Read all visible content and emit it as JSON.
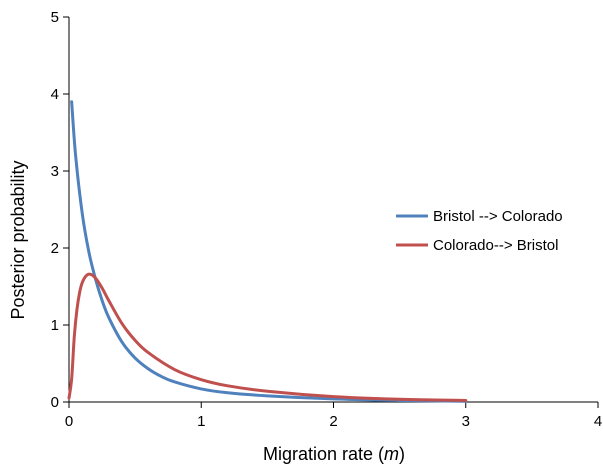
{
  "chart_data": {
    "type": "line",
    "title": "",
    "xlabel": "Migration rate (",
    "xlabel_var": "m",
    "xlabel_close": ")",
    "ylabel": "Posterior probability",
    "xlim": [
      0,
      4
    ],
    "ylim": [
      0,
      5
    ],
    "xticks": [
      "0",
      "1",
      "2",
      "3",
      "4"
    ],
    "yticks": [
      "0",
      "1",
      "2",
      "3",
      "4",
      "5"
    ],
    "grid": false,
    "legend_position": "right",
    "series": [
      {
        "name": "Bristol --> Colorado",
        "color": "#4f81bd",
        "x": [
          0.02,
          0.05,
          0.1,
          0.15,
          0.2,
          0.25,
          0.3,
          0.4,
          0.5,
          0.6,
          0.7,
          0.8,
          1.0,
          1.2,
          1.5,
          2.0,
          2.5,
          3.0
        ],
        "y": [
          3.9,
          3.2,
          2.45,
          1.95,
          1.6,
          1.32,
          1.1,
          0.78,
          0.57,
          0.43,
          0.33,
          0.26,
          0.17,
          0.12,
          0.08,
          0.04,
          0.02,
          0.01
        ]
      },
      {
        "name": "Colorado--> Bristol",
        "color": "#c0504d",
        "x": [
          0.0,
          0.02,
          0.04,
          0.06,
          0.08,
          0.1,
          0.13,
          0.16,
          0.2,
          0.25,
          0.3,
          0.4,
          0.5,
          0.6,
          0.8,
          1.0,
          1.2,
          1.5,
          2.0,
          2.5,
          3.0
        ],
        "y": [
          0.05,
          0.3,
          0.85,
          1.2,
          1.42,
          1.55,
          1.64,
          1.66,
          1.61,
          1.48,
          1.32,
          1.02,
          0.8,
          0.64,
          0.42,
          0.29,
          0.21,
          0.14,
          0.07,
          0.035,
          0.02
        ]
      }
    ]
  }
}
